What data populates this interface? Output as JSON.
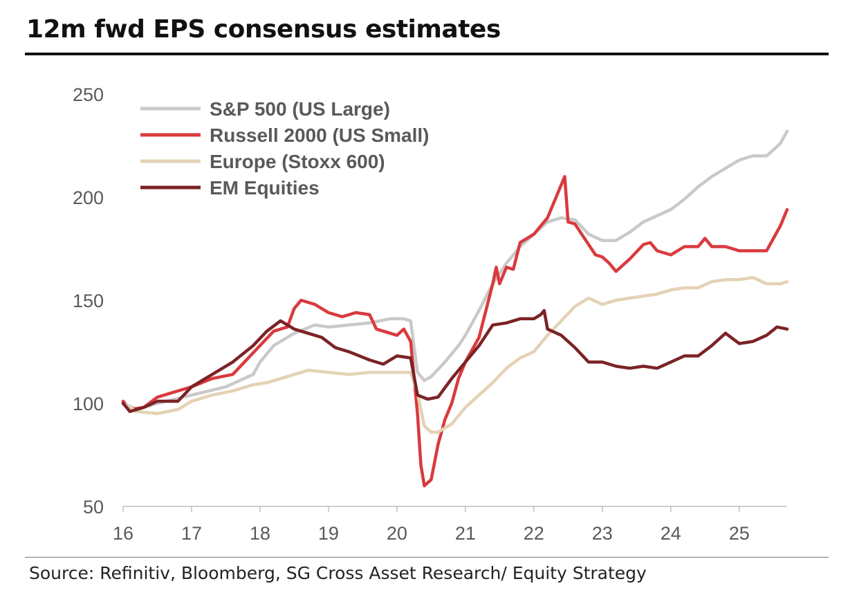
{
  "header": {
    "title": "12m fwd EPS consensus estimates",
    "source": "Source: Refinitiv, Bloomberg, SG Cross Asset Research/ Equity Strategy"
  },
  "chart_data": {
    "type": "line",
    "title": "12m fwd EPS consensus estimates",
    "xlabel": "",
    "ylabel": "",
    "xlim": [
      16,
      25.7
    ],
    "ylim": [
      50,
      250
    ],
    "x_ticks": [
      "16",
      "17",
      "18",
      "19",
      "20",
      "21",
      "22",
      "23",
      "24",
      "25"
    ],
    "y_ticks": [
      "50",
      "100",
      "150",
      "200",
      "250"
    ],
    "grid": false,
    "legend_position": "top-left",
    "series": [
      {
        "name": "S&P 500 (US Large)",
        "color": "#c9c9c9",
        "points": [
          [
            16.0,
            100
          ],
          [
            16.2,
            97
          ],
          [
            16.5,
            100
          ],
          [
            17.0,
            104
          ],
          [
            17.5,
            108
          ],
          [
            17.9,
            114
          ],
          [
            18.0,
            120
          ],
          [
            18.2,
            128
          ],
          [
            18.5,
            134
          ],
          [
            18.8,
            138
          ],
          [
            19.0,
            137
          ],
          [
            19.3,
            138
          ],
          [
            19.6,
            139
          ],
          [
            19.9,
            141
          ],
          [
            20.1,
            141
          ],
          [
            20.2,
            140
          ],
          [
            20.3,
            115
          ],
          [
            20.4,
            111
          ],
          [
            20.5,
            113
          ],
          [
            20.7,
            120
          ],
          [
            20.9,
            128
          ],
          [
            21.0,
            133
          ],
          [
            21.2,
            145
          ],
          [
            21.4,
            158
          ],
          [
            21.6,
            168
          ],
          [
            21.8,
            176
          ],
          [
            22.0,
            182
          ],
          [
            22.2,
            188
          ],
          [
            22.4,
            190
          ],
          [
            22.6,
            189
          ],
          [
            22.8,
            182
          ],
          [
            23.0,
            179
          ],
          [
            23.2,
            179
          ],
          [
            23.4,
            183
          ],
          [
            23.6,
            188
          ],
          [
            23.8,
            191
          ],
          [
            24.0,
            194
          ],
          [
            24.2,
            199
          ],
          [
            24.4,
            205
          ],
          [
            24.6,
            210
          ],
          [
            24.8,
            214
          ],
          [
            25.0,
            218
          ],
          [
            25.2,
            220
          ],
          [
            25.4,
            220
          ],
          [
            25.6,
            226
          ],
          [
            25.7,
            232
          ]
        ]
      },
      {
        "name": "Russell 2000 (US Small)",
        "color": "#d93a3e",
        "points": [
          [
            16.0,
            101
          ],
          [
            16.1,
            97
          ],
          [
            16.3,
            98
          ],
          [
            16.5,
            103
          ],
          [
            16.8,
            106
          ],
          [
            17.0,
            108
          ],
          [
            17.3,
            112
          ],
          [
            17.6,
            114
          ],
          [
            18.0,
            128
          ],
          [
            18.2,
            135
          ],
          [
            18.4,
            137
          ],
          [
            18.5,
            146
          ],
          [
            18.6,
            150
          ],
          [
            18.8,
            148
          ],
          [
            19.0,
            144
          ],
          [
            19.2,
            142
          ],
          [
            19.4,
            144
          ],
          [
            19.6,
            143
          ],
          [
            19.7,
            136
          ],
          [
            20.0,
            133
          ],
          [
            20.1,
            136
          ],
          [
            20.2,
            130
          ],
          [
            20.3,
            95
          ],
          [
            20.35,
            70
          ],
          [
            20.4,
            60
          ],
          [
            20.5,
            63
          ],
          [
            20.6,
            80
          ],
          [
            20.7,
            92
          ],
          [
            20.8,
            100
          ],
          [
            20.9,
            112
          ],
          [
            21.0,
            120
          ],
          [
            21.2,
            132
          ],
          [
            21.3,
            145
          ],
          [
            21.4,
            158
          ],
          [
            21.45,
            166
          ],
          [
            21.5,
            158
          ],
          [
            21.6,
            166
          ],
          [
            21.7,
            165
          ],
          [
            21.8,
            178
          ],
          [
            22.0,
            182
          ],
          [
            22.2,
            190
          ],
          [
            22.35,
            202
          ],
          [
            22.45,
            210
          ],
          [
            22.5,
            188
          ],
          [
            22.6,
            187
          ],
          [
            22.7,
            182
          ],
          [
            22.9,
            172
          ],
          [
            23.0,
            171
          ],
          [
            23.1,
            168
          ],
          [
            23.2,
            164
          ],
          [
            23.4,
            170
          ],
          [
            23.6,
            177
          ],
          [
            23.7,
            178
          ],
          [
            23.8,
            174
          ],
          [
            24.0,
            172
          ],
          [
            24.2,
            176
          ],
          [
            24.4,
            176
          ],
          [
            24.5,
            180
          ],
          [
            24.6,
            176
          ],
          [
            24.8,
            176
          ],
          [
            25.0,
            174
          ],
          [
            25.2,
            174
          ],
          [
            25.4,
            174
          ],
          [
            25.5,
            180
          ],
          [
            25.6,
            186
          ],
          [
            25.7,
            194
          ]
        ]
      },
      {
        "name": "Europe (Stoxx 600)",
        "color": "#e3d2b4",
        "points": [
          [
            16.0,
            100
          ],
          [
            16.2,
            96
          ],
          [
            16.5,
            95
          ],
          [
            16.8,
            97
          ],
          [
            17.0,
            101
          ],
          [
            17.3,
            104
          ],
          [
            17.6,
            106
          ],
          [
            17.9,
            109
          ],
          [
            18.1,
            110
          ],
          [
            18.4,
            113
          ],
          [
            18.7,
            116
          ],
          [
            19.0,
            115
          ],
          [
            19.3,
            114
          ],
          [
            19.6,
            115
          ],
          [
            19.9,
            115
          ],
          [
            20.1,
            115
          ],
          [
            20.2,
            115
          ],
          [
            20.3,
            105
          ],
          [
            20.4,
            89
          ],
          [
            20.5,
            86
          ],
          [
            20.6,
            86
          ],
          [
            20.8,
            90
          ],
          [
            21.0,
            98
          ],
          [
            21.2,
            104
          ],
          [
            21.4,
            110
          ],
          [
            21.6,
            117
          ],
          [
            21.8,
            122
          ],
          [
            22.0,
            125
          ],
          [
            22.2,
            133
          ],
          [
            22.4,
            140
          ],
          [
            22.6,
            147
          ],
          [
            22.8,
            151
          ],
          [
            23.0,
            148
          ],
          [
            23.2,
            150
          ],
          [
            23.4,
            151
          ],
          [
            23.6,
            152
          ],
          [
            23.8,
            153
          ],
          [
            24.0,
            155
          ],
          [
            24.2,
            156
          ],
          [
            24.4,
            156
          ],
          [
            24.6,
            159
          ],
          [
            24.8,
            160
          ],
          [
            25.0,
            160
          ],
          [
            25.2,
            161
          ],
          [
            25.4,
            158
          ],
          [
            25.6,
            158
          ],
          [
            25.7,
            159
          ]
        ]
      },
      {
        "name": "EM Equities",
        "color": "#7b2326",
        "points": [
          [
            16.0,
            100
          ],
          [
            16.1,
            96
          ],
          [
            16.3,
            98
          ],
          [
            16.5,
            101
          ],
          [
            16.8,
            101
          ],
          [
            17.0,
            108
          ],
          [
            17.3,
            114
          ],
          [
            17.6,
            120
          ],
          [
            17.9,
            128
          ],
          [
            18.1,
            135
          ],
          [
            18.3,
            140
          ],
          [
            18.5,
            136
          ],
          [
            18.7,
            134
          ],
          [
            18.9,
            132
          ],
          [
            19.1,
            127
          ],
          [
            19.3,
            125
          ],
          [
            19.6,
            121
          ],
          [
            19.8,
            119
          ],
          [
            20.0,
            123
          ],
          [
            20.2,
            122
          ],
          [
            20.3,
            104
          ],
          [
            20.45,
            102
          ],
          [
            20.6,
            103
          ],
          [
            20.8,
            112
          ],
          [
            21.0,
            120
          ],
          [
            21.2,
            128
          ],
          [
            21.4,
            138
          ],
          [
            21.6,
            139
          ],
          [
            21.8,
            141
          ],
          [
            22.0,
            141
          ],
          [
            22.1,
            143
          ],
          [
            22.15,
            145
          ],
          [
            22.2,
            136
          ],
          [
            22.4,
            133
          ],
          [
            22.6,
            127
          ],
          [
            22.8,
            120
          ],
          [
            23.0,
            120
          ],
          [
            23.2,
            118
          ],
          [
            23.4,
            117
          ],
          [
            23.6,
            118
          ],
          [
            23.8,
            117
          ],
          [
            24.0,
            120
          ],
          [
            24.2,
            123
          ],
          [
            24.4,
            123
          ],
          [
            24.6,
            128
          ],
          [
            24.8,
            134
          ],
          [
            25.0,
            129
          ],
          [
            25.2,
            130
          ],
          [
            25.4,
            133
          ],
          [
            25.55,
            137
          ],
          [
            25.7,
            136
          ]
        ]
      }
    ]
  }
}
